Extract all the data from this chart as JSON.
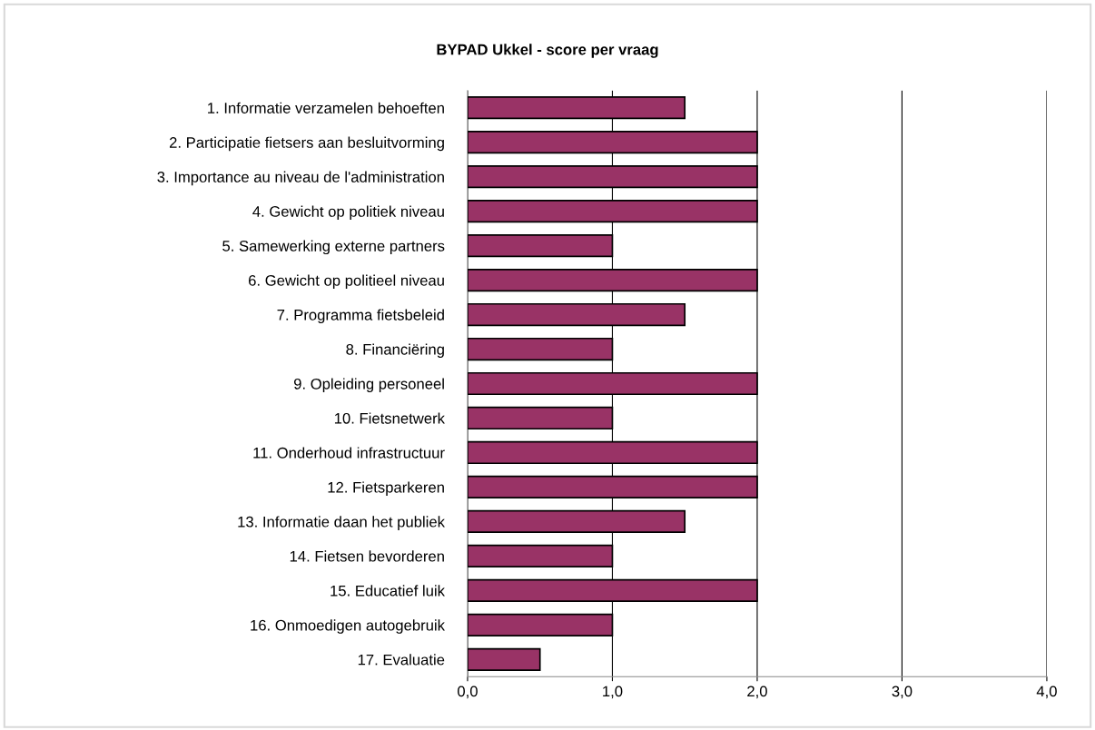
{
  "chart_data": {
    "type": "bar",
    "orientation": "horizontal",
    "title": "BYPAD Ukkel - score per vraag",
    "categories": [
      "1. Informatie verzamelen behoeften",
      "2. Participatie fietsers aan besluitvorming",
      "3. Importance au niveau de l'administration",
      "4. Gewicht op politiek niveau",
      "5. Samewerking externe partners",
      "6. Gewicht op politieel niveau",
      "7. Programma fietsbeleid",
      "8. Financiëring",
      "9. Opleiding personeel",
      "10. Fietsnetwerk",
      "11. Onderhoud infrastructuur",
      "12. Fietsparkeren",
      "13. Informatie daan het publiek",
      "14. Fietsen bevorderen",
      "15. Educatief luik",
      "16. Onmoedigen autogebruik",
      "17. Evaluatie"
    ],
    "values": [
      1.5,
      2,
      2,
      2,
      1,
      2,
      1.5,
      1,
      2,
      1,
      2,
      2,
      1.5,
      1,
      2,
      1,
      0.5
    ],
    "color": "#993366",
    "xlim": [
      0,
      4
    ],
    "xticks": [
      {
        "value": 0,
        "label": "0,0"
      },
      {
        "value": 1,
        "label": "1,0"
      },
      {
        "value": 2,
        "label": "2,0"
      },
      {
        "value": 3,
        "label": "3,0"
      },
      {
        "value": 4,
        "label": "4,0"
      }
    ],
    "grid": "x",
    "legend": false
  }
}
